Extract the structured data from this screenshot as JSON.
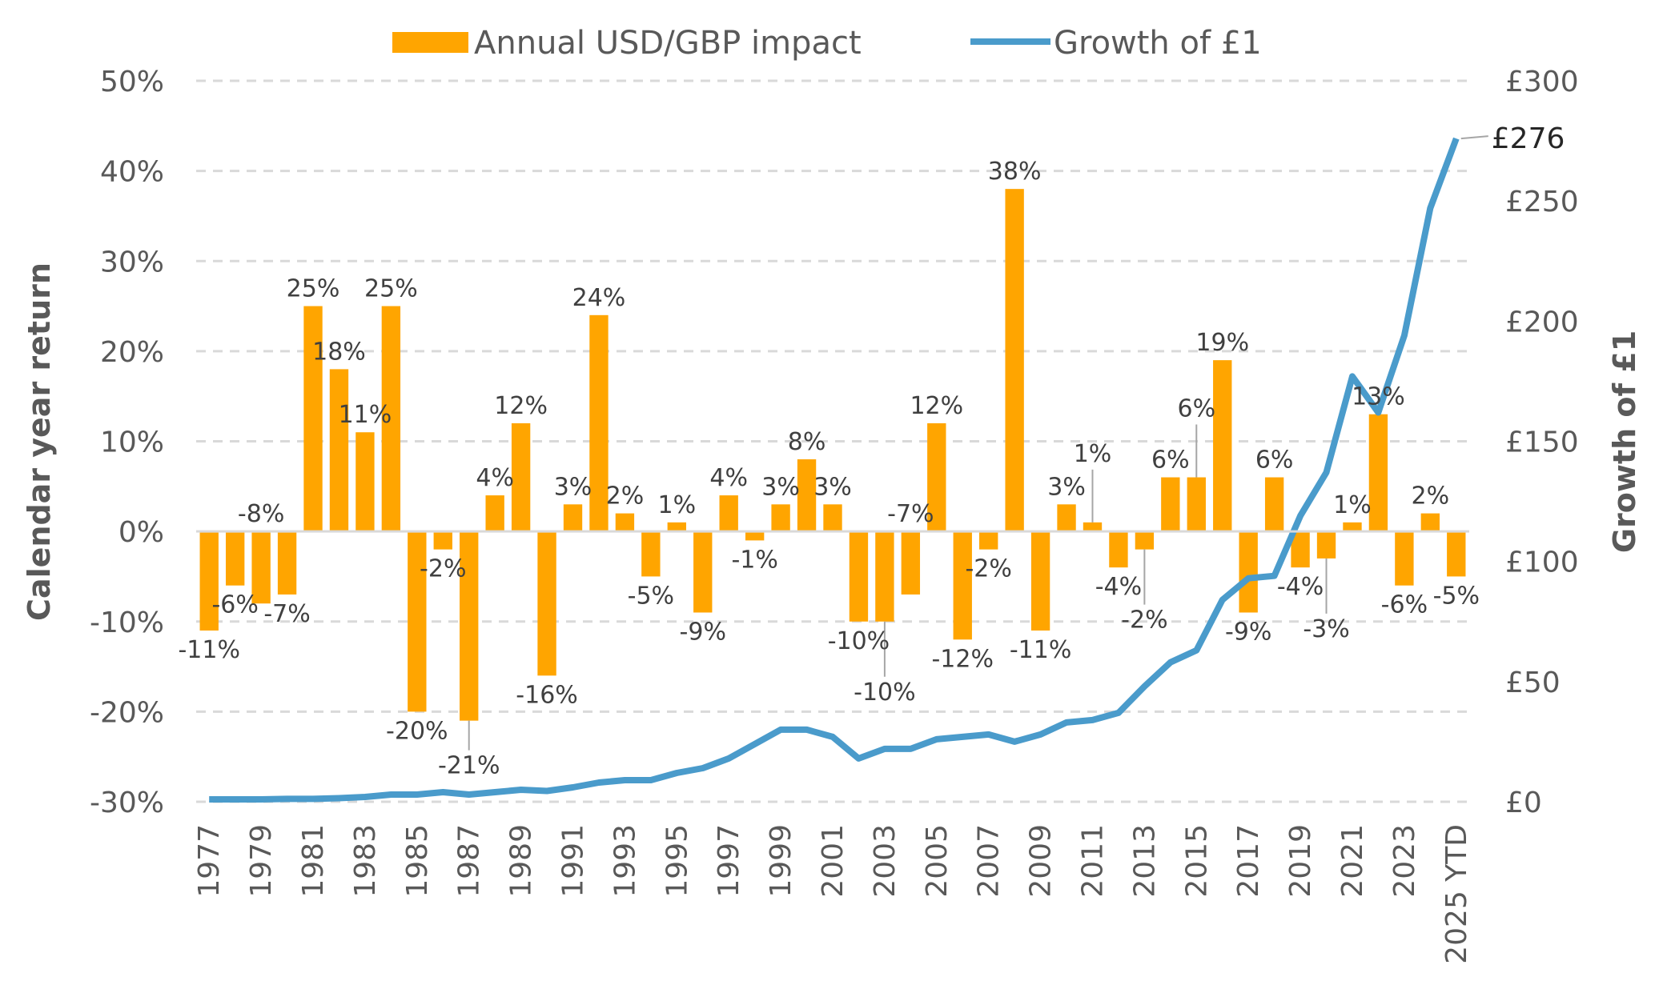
{
  "chart_data": {
    "type": "bar+line",
    "legend": {
      "position": "top",
      "entries": [
        "Annual USD/GBP impact",
        "Growth of £1"
      ]
    },
    "categories": [
      "1977",
      "1978",
      "1979",
      "1980",
      "1981",
      "1982",
      "1983",
      "1984",
      "1985",
      "1986",
      "1987",
      "1988",
      "1989",
      "1990",
      "1991",
      "1992",
      "1993",
      "1994",
      "1995",
      "1996",
      "1997",
      "1998",
      "1999",
      "2000",
      "2001",
      "2002",
      "2003",
      "2004",
      "2005",
      "2006",
      "2007",
      "2008",
      "2009",
      "2010",
      "2011",
      "2012",
      "2013",
      "2014",
      "2015",
      "2016",
      "2017",
      "2018",
      "2019",
      "2020",
      "2021",
      "2022",
      "2023",
      "2024",
      "2025 YTD"
    ],
    "series": [
      {
        "name": "Annual USD/GBP impact",
        "type": "bar",
        "axis": "left",
        "color": "#FFA500",
        "values": [
          -11,
          -6,
          -8,
          -7,
          25,
          18,
          11,
          25,
          -20,
          -2,
          -21,
          4,
          12,
          -16,
          3,
          24,
          2,
          -5,
          1,
          -9,
          4,
          -1,
          3,
          8,
          3,
          -10,
          -10,
          -7,
          12,
          -12,
          -2,
          38,
          -11,
          3,
          1,
          -4,
          -2,
          6,
          6,
          19,
          -9,
          6,
          -4,
          -3,
          1,
          13,
          -6,
          2,
          -5
        ],
        "data_labels": [
          "-11%",
          "-6%",
          "-8%",
          "-7%",
          "25%",
          "18%",
          "11%",
          "25%",
          "-20%",
          "-2%",
          "-21%",
          "4%",
          "12%",
          "-16%",
          "3%",
          "24%",
          "2%",
          "-5%",
          "1%",
          "-9%",
          "4%",
          "-1%",
          "3%",
          "8%",
          "3%",
          "-10%",
          "-10%",
          "-7%",
          "12%",
          "-12%",
          "-2%",
          "38%",
          "-11%",
          "3%",
          "1%",
          "-4%",
          "-2%",
          "6%",
          "6%",
          "19%",
          "-9%",
          "6%",
          "-4%",
          "-3%",
          "1%",
          "13%",
          "-6%",
          "2%",
          "-5%"
        ]
      },
      {
        "name": "Growth of £1",
        "type": "line",
        "axis": "right",
        "color": "#4A9BCB",
        "values": [
          1,
          1,
          1,
          1.2,
          1.2,
          1.5,
          2,
          3,
          3,
          4,
          3,
          4,
          5,
          4.5,
          6,
          8,
          9,
          9,
          12,
          14,
          18,
          24,
          30,
          30,
          27,
          18,
          22,
          22,
          26,
          27,
          28,
          25,
          28,
          33,
          34,
          37,
          48,
          58,
          63,
          84,
          93,
          94,
          119,
          137,
          177,
          162,
          194,
          247,
          276
        ],
        "end_label": "£276"
      }
    ],
    "y_left": {
      "label": "Calendar year return",
      "range": [
        -30,
        50
      ],
      "ticks": [
        "-30%",
        "-20%",
        "-10%",
        "0%",
        "10%",
        "20%",
        "30%",
        "40%",
        "50%"
      ]
    },
    "y_right": {
      "label": "Growth of £1",
      "range": [
        0,
        300
      ],
      "ticks": [
        "£0",
        "£50",
        "£100",
        "£150",
        "£200",
        "£250",
        "£300"
      ]
    },
    "x_tick_labels": [
      "1977",
      "1979",
      "1981",
      "1983",
      "1985",
      "1987",
      "1989",
      "1991",
      "1993",
      "1995",
      "1997",
      "1999",
      "2001",
      "2003",
      "2005",
      "2007",
      "2009",
      "2011",
      "2013",
      "2015",
      "2017",
      "2019",
      "2021",
      "2023",
      "2025 YTD"
    ],
    "grid": true
  }
}
